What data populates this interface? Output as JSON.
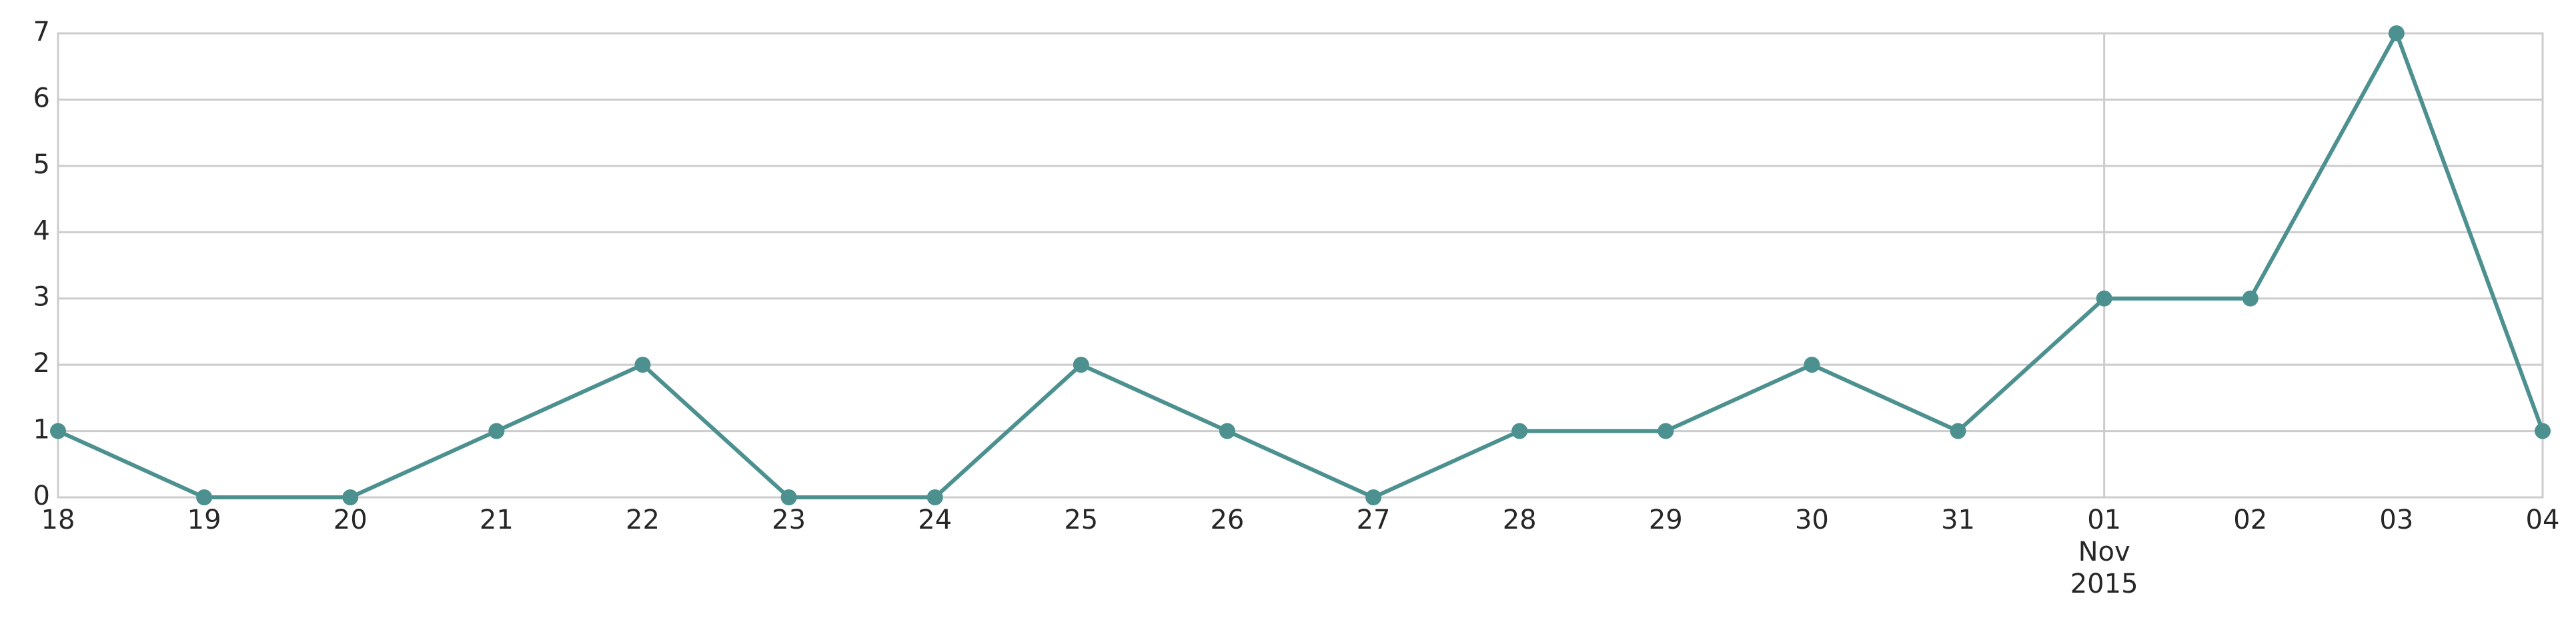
{
  "chart_data": {
    "type": "line",
    "title": "",
    "xlabel": "",
    "ylabel": "",
    "x": [
      "2015-10-18",
      "2015-10-19",
      "2015-10-20",
      "2015-10-21",
      "2015-10-22",
      "2015-10-23",
      "2015-10-24",
      "2015-10-25",
      "2015-10-26",
      "2015-10-27",
      "2015-10-28",
      "2015-10-29",
      "2015-10-30",
      "2015-10-31",
      "2015-11-01",
      "2015-11-02",
      "2015-11-03",
      "2015-11-04"
    ],
    "x_tick_labels": [
      "18",
      "19",
      "20",
      "21",
      "22",
      "23",
      "24",
      "25",
      "26",
      "27",
      "28",
      "29",
      "30",
      "31",
      "01",
      "02",
      "03",
      "04"
    ],
    "x_month_label": "Nov",
    "x_year_label": "2015",
    "series": [
      {
        "values": [
          1,
          0,
          0,
          1,
          2,
          0,
          0,
          2,
          1,
          0,
          1,
          1,
          2,
          1,
          3,
          3,
          7,
          1
        ]
      }
    ],
    "ylim": [
      0,
      7
    ],
    "y_ticks": [
      "0",
      "1",
      "2",
      "3",
      "4",
      "5",
      "6",
      "7"
    ],
    "grid": "horizontal",
    "line_color": "#4c9090",
    "grid_color": "#cccccc",
    "text_color": "#262626"
  }
}
